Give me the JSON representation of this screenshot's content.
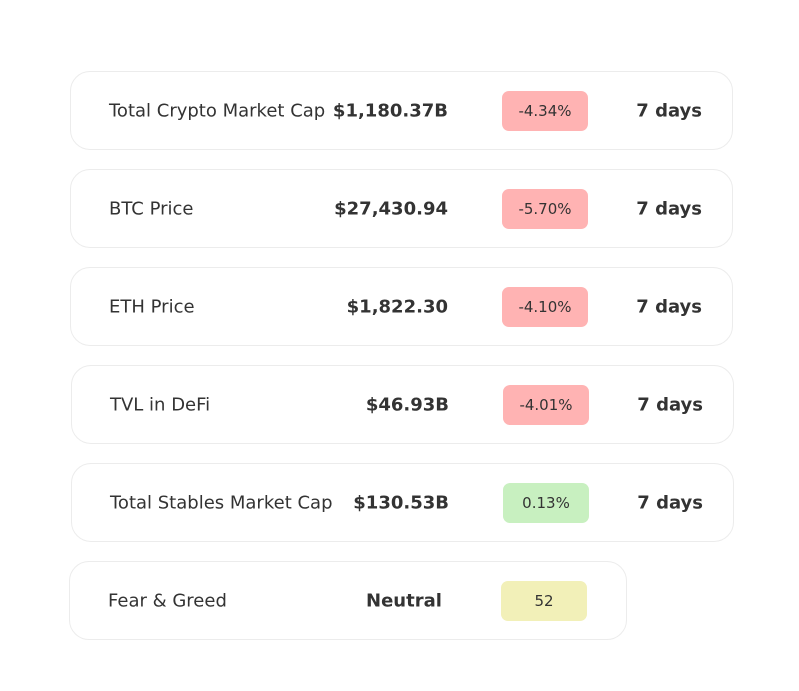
{
  "colors": {
    "negative": "#ffb3b3",
    "positive": "#c8f0c0",
    "neutral": "#f2f0b8"
  },
  "metrics": [
    {
      "label": "Total Crypto Market Cap",
      "value": "$1,180.37B",
      "change": "-4.34%",
      "period": "7 days",
      "trend": "negative"
    },
    {
      "label": "BTC Price",
      "value": "$27,430.94",
      "change": "-5.70%",
      "period": "7 days",
      "trend": "negative"
    },
    {
      "label": "ETH Price",
      "value": "$1,822.30",
      "change": "-4.10%",
      "period": "7 days",
      "trend": "negative"
    },
    {
      "label": "TVL in DeFi",
      "value": "$46.93B",
      "change": "-4.01%",
      "period": "7 days",
      "trend": "negative"
    },
    {
      "label": "Total Stables Market Cap",
      "value": "$130.53B",
      "change": "0.13%",
      "period": "7 days",
      "trend": "positive"
    }
  ],
  "fear_greed": {
    "label": "Fear & Greed",
    "status": "Neutral",
    "score": "52"
  }
}
